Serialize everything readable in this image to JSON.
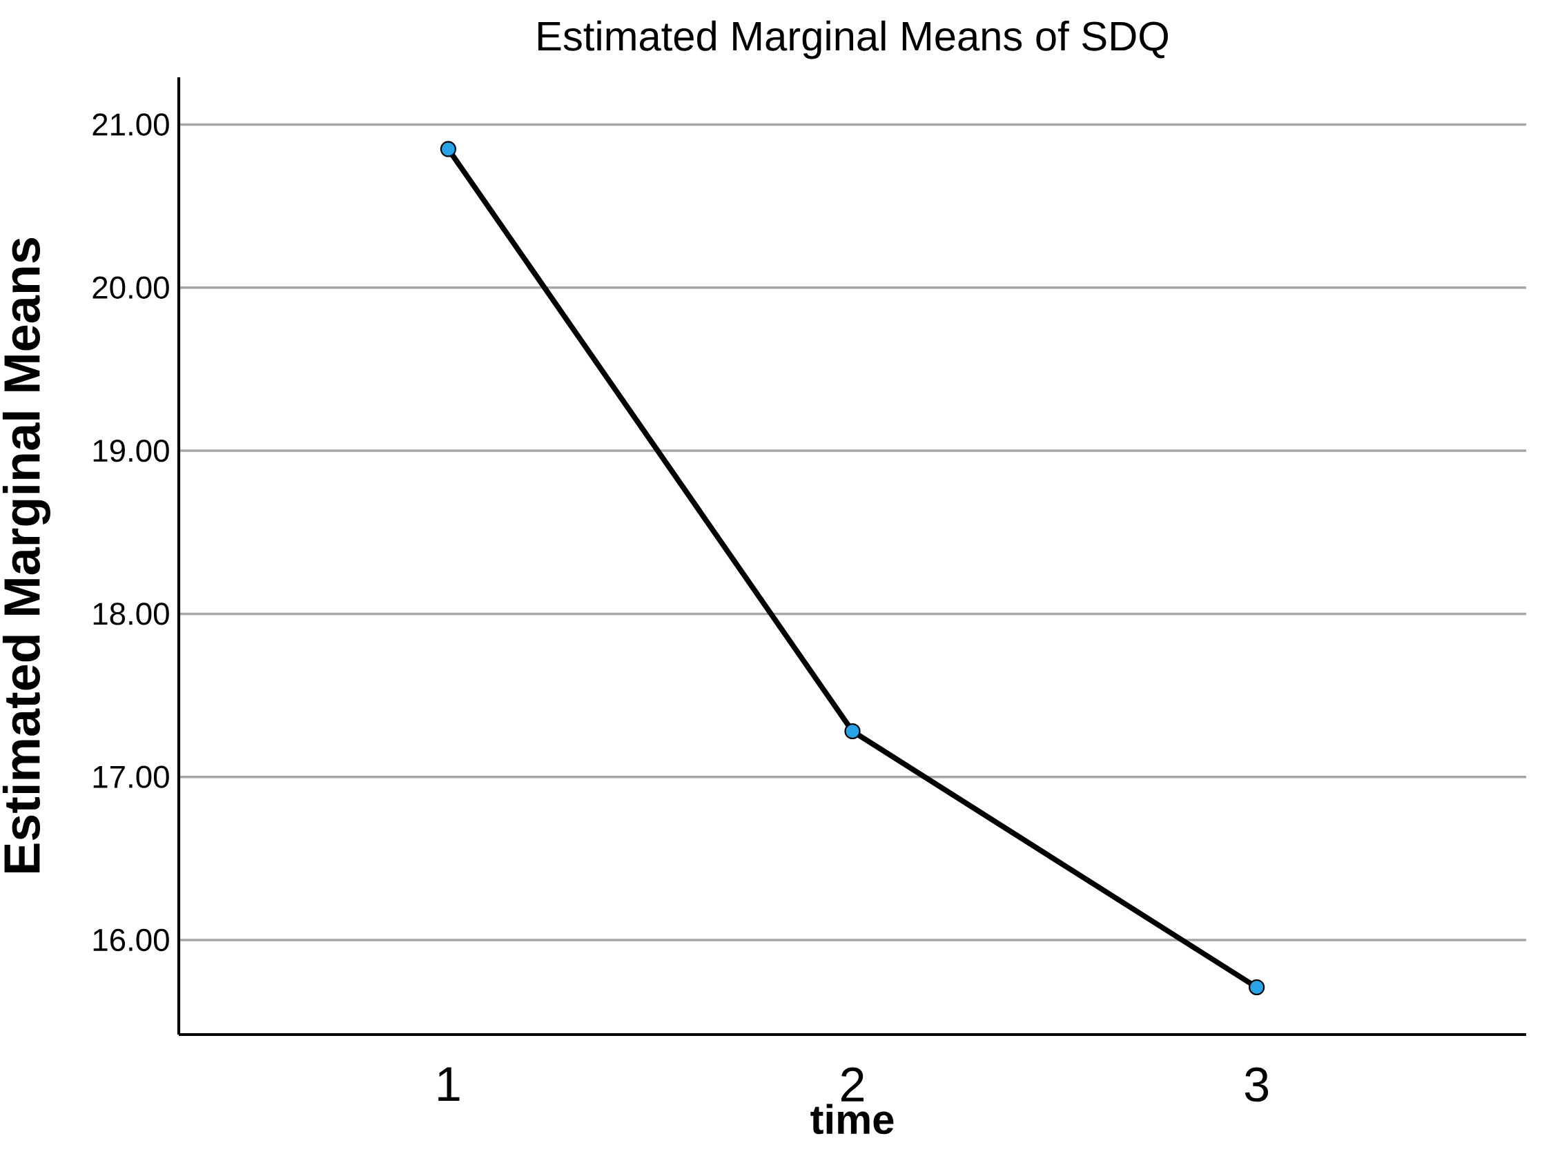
{
  "chart_data": {
    "type": "line",
    "title": "Estimated Marginal Means of SDQ",
    "xlabel": "time",
    "ylabel": "Estimated Marginal Means",
    "categories": [
      "1",
      "2",
      "3"
    ],
    "series": [
      {
        "color": "#29a3e6",
        "values": [
          20.85,
          17.28,
          15.71
        ]
      }
    ],
    "ylim": [
      15.42,
      21.29
    ],
    "yticks": [
      {
        "value": 16,
        "label": "16.00"
      },
      {
        "value": 17,
        "label": "17.00"
      },
      {
        "value": 18,
        "label": "18.00"
      },
      {
        "value": 19,
        "label": "19.00"
      },
      {
        "value": 20,
        "label": "20.00"
      },
      {
        "value": 21,
        "label": "21.00"
      }
    ],
    "grid": "y",
    "marker": "circle",
    "line_style": "solid"
  }
}
